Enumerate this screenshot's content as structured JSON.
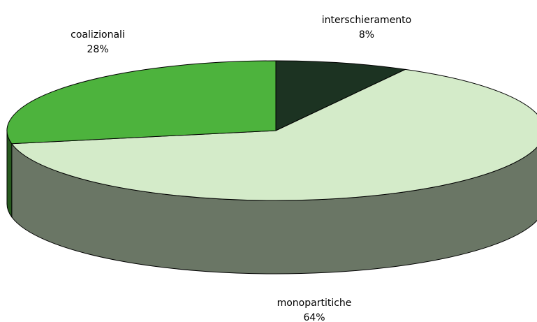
{
  "chart_data": {
    "type": "pie",
    "categories": [
      "interschieramento",
      "monopartitiche",
      "coalizionali"
    ],
    "values": [
      8,
      64,
      28
    ],
    "value_labels": [
      "8%",
      "64%",
      "28%"
    ],
    "colors": [
      "#1c3322",
      "#d4ebc9",
      "#4db33d"
    ]
  }
}
